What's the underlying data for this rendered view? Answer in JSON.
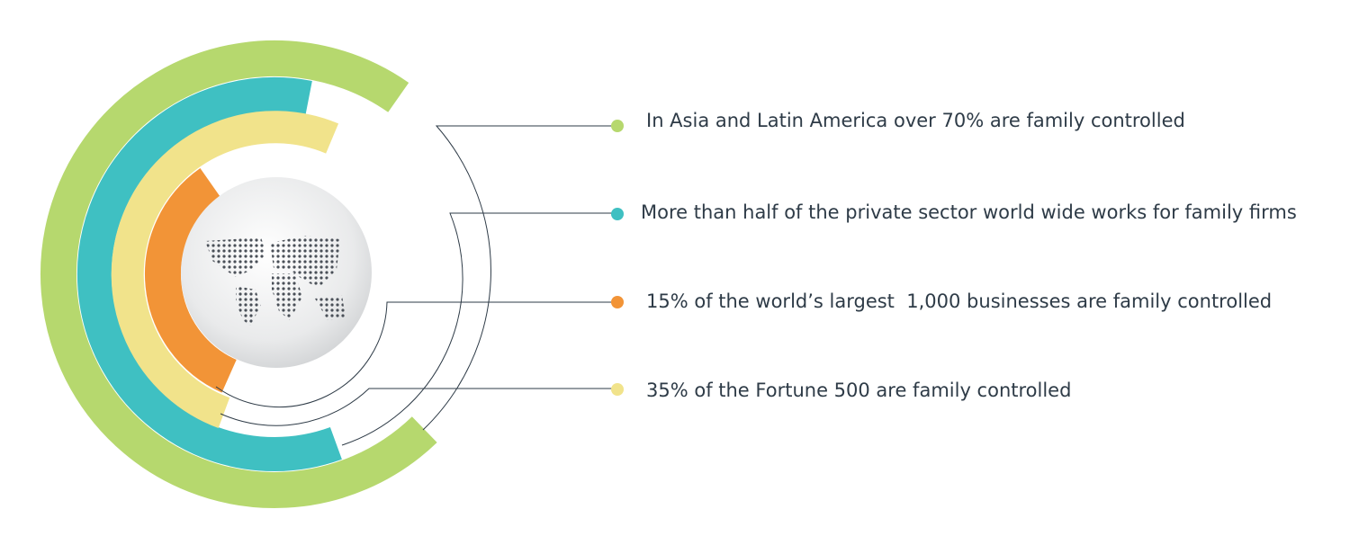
{
  "statements": [
    {
      "text": "In Asia and Latin America over 70% are family controlled"
    },
    {
      "text": "More than half of the private sector world wide works for family firms"
    },
    {
      "text": "15% of the world’s largest  1,000 businesses are family controlled"
    },
    {
      "text": "35% of the Fortune 500 are family controlled"
    }
  ]
}
